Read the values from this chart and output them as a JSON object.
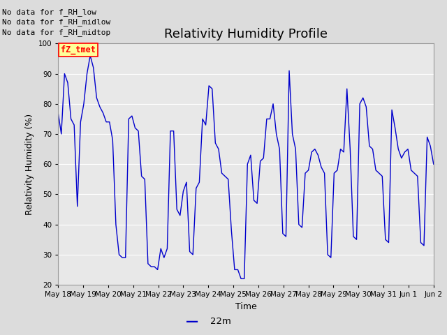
{
  "title": "Relativity Humidity Profile",
  "xlabel": "Time",
  "ylabel": "Relativity Humidity (%)",
  "legend_label": "22m",
  "ylim": [
    20,
    100
  ],
  "x_tick_labels": [
    "May 18",
    "May 19",
    "May 20",
    "May 21",
    "May 22",
    "May 23",
    "May 24",
    "May 25",
    "May 26",
    "May 27",
    "May 28",
    "May 29",
    "May 30",
    "May 31",
    "Jun 1",
    "Jun 2"
  ],
  "no_data_texts": [
    "No data for f_RH_low",
    "No data for f_RH_midlow",
    "No data for f_RH_midtop"
  ],
  "legend_box_text": "fZ_tmet",
  "line_color": "#0000cc",
  "bg_color": "#dcdcdc",
  "plot_bg_color": "#e8e8e8",
  "grid_color": "#ffffff",
  "yticks": [
    20,
    30,
    40,
    50,
    60,
    70,
    80,
    90,
    100
  ],
  "title_fontsize": 13,
  "label_fontsize": 9,
  "tick_fontsize": 7.5,
  "nodata_fontsize": 8,
  "data_y": [
    77,
    70,
    90,
    87,
    75,
    73,
    46,
    74,
    80,
    90,
    96,
    92,
    82,
    79,
    77,
    74,
    74,
    68,
    40,
    30,
    29,
    29,
    75,
    76,
    72,
    71,
    56,
    55,
    27,
    26,
    26,
    25,
    32,
    29,
    32,
    71,
    71,
    45,
    43,
    51,
    54,
    31,
    30,
    52,
    54,
    75,
    73,
    86,
    85,
    67,
    65,
    57,
    56,
    55,
    38,
    25,
    25,
    22,
    22,
    60,
    63,
    48,
    47,
    61,
    62,
    75,
    75,
    80,
    70,
    65,
    37,
    36,
    91,
    70,
    65,
    40,
    39,
    57,
    58,
    64,
    65,
    63,
    59,
    57,
    30,
    29,
    57,
    58,
    65,
    64,
    85,
    65,
    36,
    35,
    80,
    82,
    79,
    66,
    65,
    58,
    57,
    56,
    35,
    34,
    78,
    72,
    65,
    62,
    64,
    65,
    58,
    57,
    56,
    34,
    33,
    69,
    66,
    60
  ]
}
